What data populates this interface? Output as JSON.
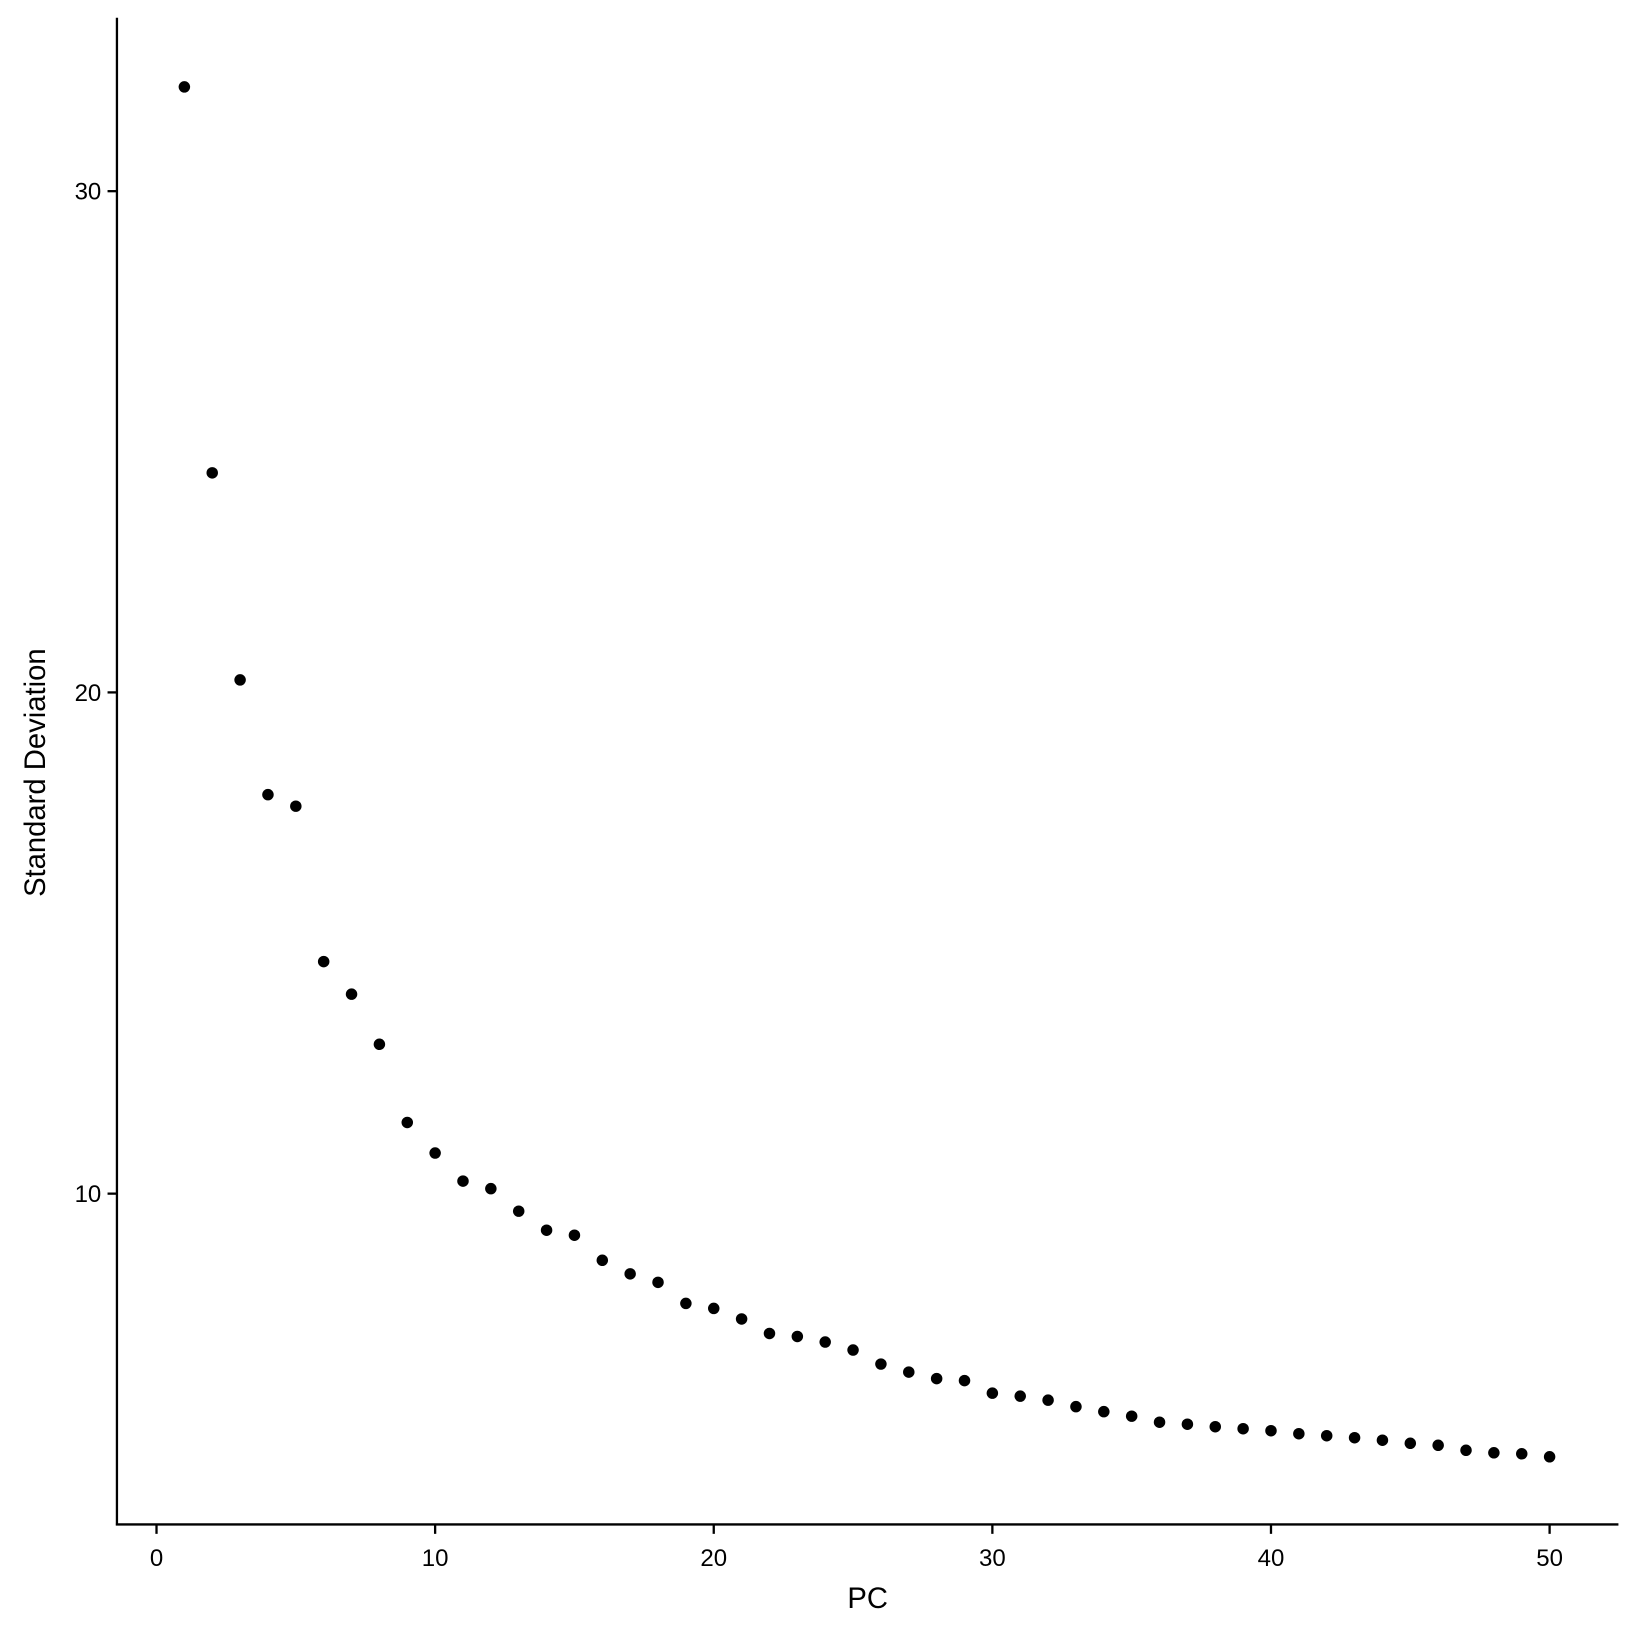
{
  "chart_data": {
    "type": "scatter",
    "title": "",
    "xlabel": "PC",
    "ylabel": "Standard Deviation",
    "xlim": [
      -1.42,
      52.47
    ],
    "ylim": [
      3.4,
      33.46
    ],
    "xticks": [
      0,
      10,
      20,
      30,
      40,
      50
    ],
    "yticks": [
      10,
      20,
      30
    ],
    "xtick_labels": [
      "0",
      "10",
      "20",
      "30",
      "40",
      "50"
    ],
    "ytick_labels": [
      "10",
      "20",
      "30"
    ],
    "grid": false,
    "point_color": "#000000",
    "x": [
      1,
      2,
      3,
      4,
      5,
      6,
      7,
      8,
      9,
      10,
      11,
      12,
      13,
      14,
      15,
      16,
      17,
      18,
      19,
      20,
      21,
      22,
      23,
      24,
      25,
      26,
      27,
      28,
      29,
      30,
      31,
      32,
      33,
      34,
      35,
      36,
      37,
      38,
      39,
      40,
      41,
      42,
      43,
      44,
      45,
      46,
      47,
      48,
      49,
      50
    ],
    "y": [
      32.08,
      24.38,
      20.25,
      17.96,
      17.73,
      14.63,
      13.98,
      12.98,
      11.42,
      10.81,
      10.25,
      10.1,
      9.65,
      9.27,
      9.17,
      8.67,
      8.4,
      8.23,
      7.81,
      7.71,
      7.5,
      7.21,
      7.15,
      7.04,
      6.88,
      6.6,
      6.44,
      6.31,
      6.27,
      6.02,
      5.96,
      5.88,
      5.75,
      5.65,
      5.56,
      5.44,
      5.4,
      5.35,
      5.31,
      5.27,
      5.21,
      5.17,
      5.13,
      5.08,
      5.02,
      4.98,
      4.88,
      4.83,
      4.81,
      4.75
    ]
  }
}
